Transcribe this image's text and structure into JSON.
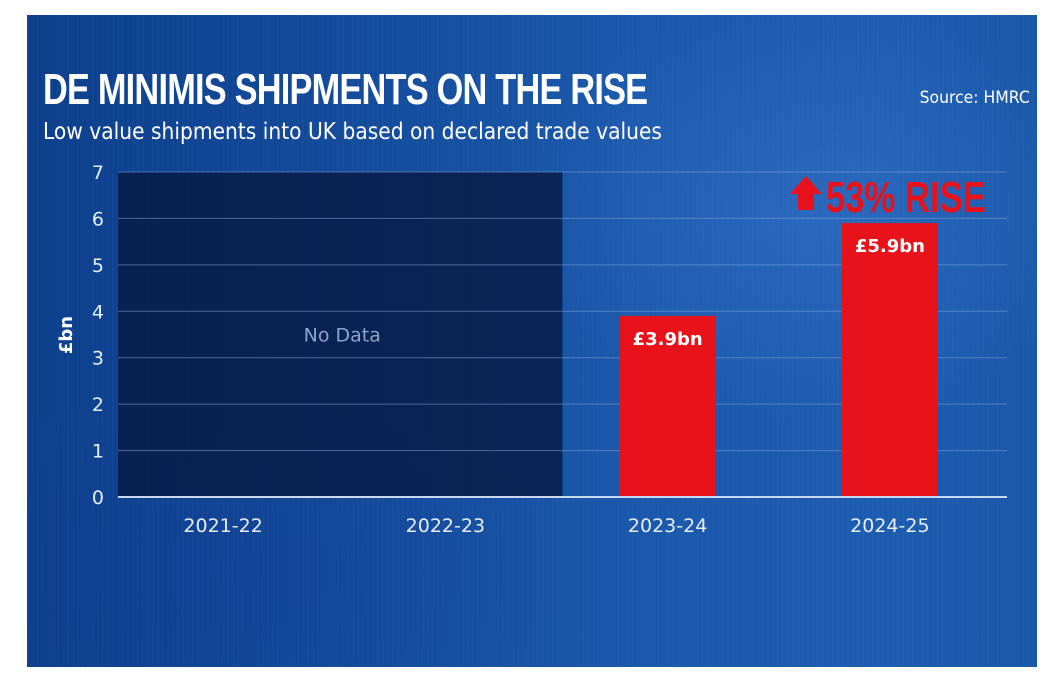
{
  "header": {
    "title": "DE MINIMIS SHIPMENTS ON THE RISE",
    "subtitle": "Low value shipments into UK based on declared trade values",
    "source": "Source: HMRC"
  },
  "colors": {
    "bar": "#e8131a",
    "no_data_fill": "#071a45",
    "gridline": "#7fa0d6",
    "axis": "#c9d8f0",
    "annotation": "#e8131a"
  },
  "chart_data": {
    "type": "bar",
    "title": "DE MINIMIS SHIPMENTS ON THE RISE",
    "subtitle": "Low value shipments into UK based on declared trade values",
    "xlabel": "",
    "ylabel": "£bn",
    "categories": [
      "2021-22",
      "2022-23",
      "2023-24",
      "2024-25"
    ],
    "values": [
      null,
      null,
      3.9,
      5.9
    ],
    "data_labels": [
      "",
      "",
      "£3.9bn",
      "£5.9bn"
    ],
    "ylim": [
      0,
      7
    ],
    "yticks": [
      0,
      1,
      2,
      3,
      4,
      5,
      6,
      7
    ],
    "grid": true,
    "no_data": {
      "label": "No Data",
      "categories": [
        "2021-22",
        "2022-23"
      ]
    },
    "annotation": {
      "text": "53% RISE",
      "icon": "arrow-up-icon",
      "category": "2024-25"
    },
    "source": "Source: HMRC"
  }
}
